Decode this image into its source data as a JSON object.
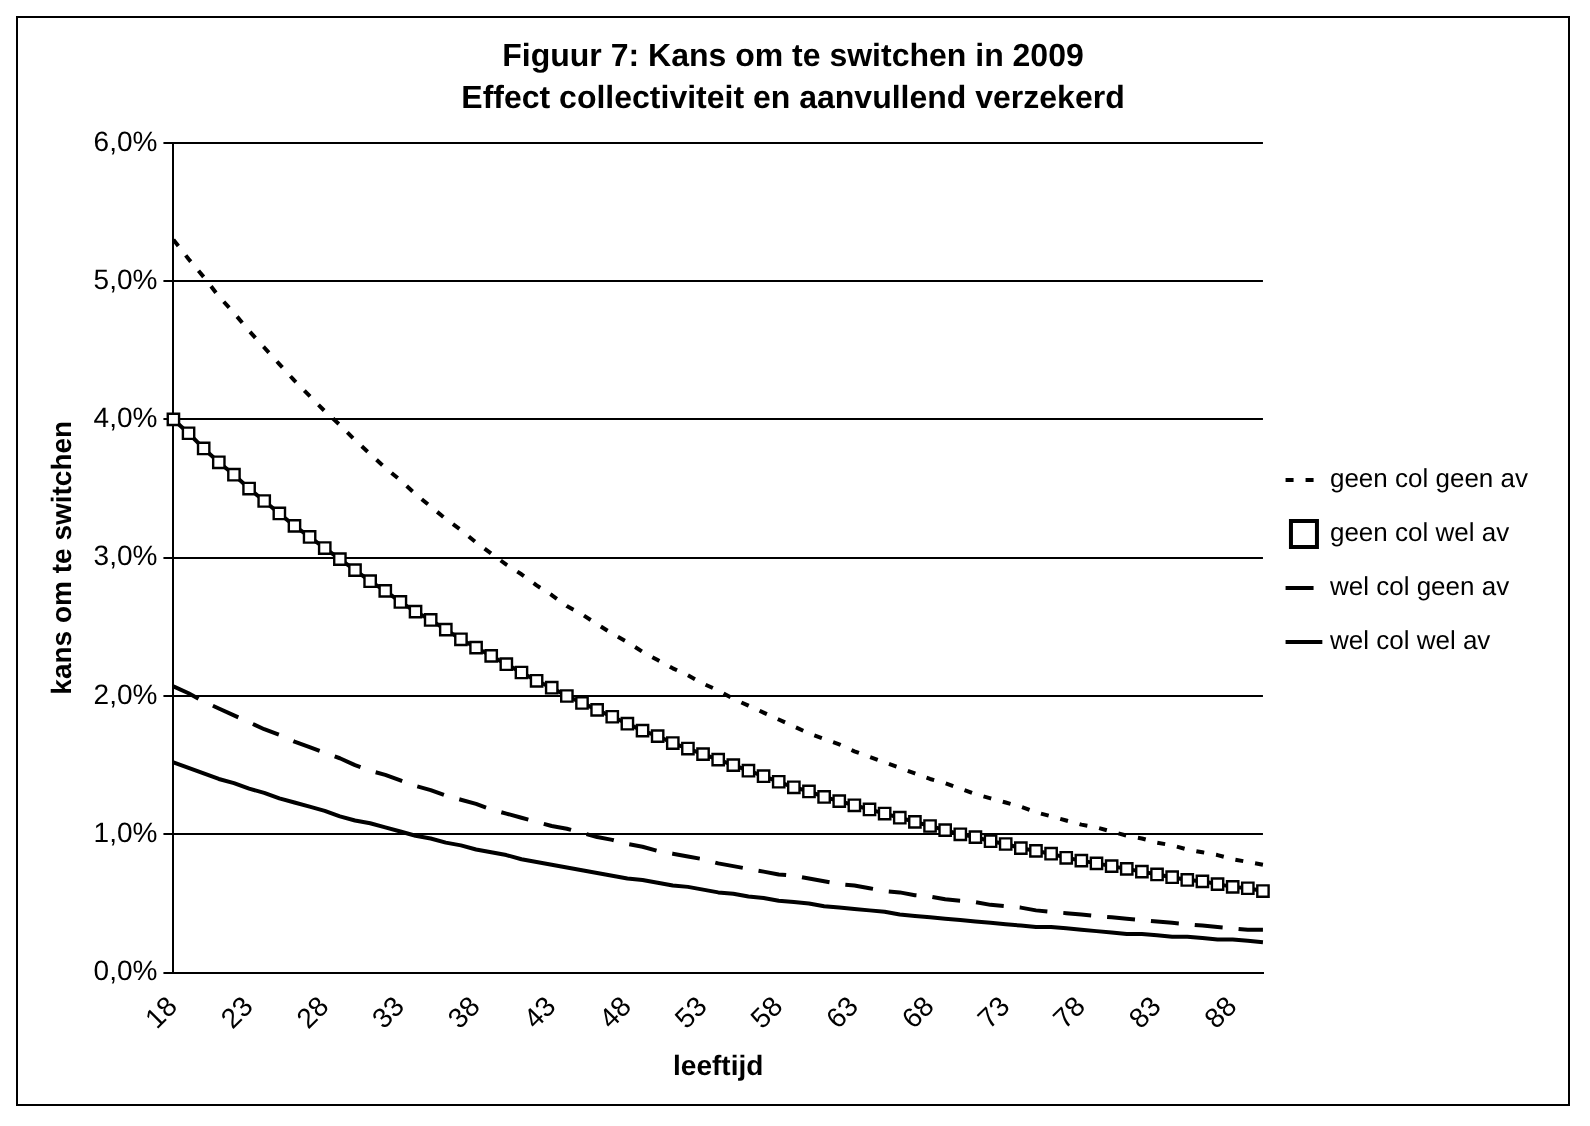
{
  "chart_data": {
    "type": "line",
    "title": "Figuur 7: Kans om te switchen in 2009",
    "subtitle": "Effect collectiviteit en aanvullend verzekerd",
    "xlabel": "leeftijd",
    "ylabel": "kans om te switchen",
    "categories": [
      "18",
      null,
      null,
      null,
      null,
      "23",
      null,
      null,
      null,
      null,
      "28",
      null,
      null,
      null,
      null,
      "33",
      null,
      null,
      null,
      null,
      "38",
      null,
      null,
      null,
      null,
      "43",
      null,
      null,
      null,
      null,
      "48",
      null,
      null,
      null,
      null,
      "53",
      null,
      null,
      null,
      null,
      "58",
      null,
      null,
      null,
      null,
      "63",
      null,
      null,
      null,
      null,
      "68",
      null,
      null,
      null,
      null,
      "73",
      null,
      null,
      null,
      null,
      "78",
      null,
      null,
      null,
      null,
      "83",
      null,
      null,
      null,
      null,
      "88",
      null,
      null
    ],
    "ylim": [
      0,
      6
    ],
    "yticks": [
      {
        "value": 0,
        "label": "0,0%"
      },
      {
        "value": 1,
        "label": "1,0%"
      },
      {
        "value": 2,
        "label": "2,0%"
      },
      {
        "value": 3,
        "label": "3,0%"
      },
      {
        "value": 4,
        "label": "4,0%"
      },
      {
        "value": 5,
        "label": "5,0%"
      },
      {
        "value": 6,
        "label": "6,0%"
      }
    ],
    "grid": "y",
    "legend": "right",
    "series": [
      {
        "name": "geen col geen av",
        "color": "#000000",
        "line_style": "dotted",
        "marker": "none",
        "values": [
          5.3,
          5.16,
          5.03,
          4.89,
          4.77,
          4.64,
          4.52,
          4.4,
          4.28,
          4.17,
          4.06,
          3.96,
          3.85,
          3.75,
          3.65,
          3.56,
          3.46,
          3.37,
          3.28,
          3.2,
          3.11,
          3.03,
          2.95,
          2.88,
          2.8,
          2.73,
          2.65,
          2.59,
          2.52,
          2.45,
          2.39,
          2.32,
          2.26,
          2.2,
          2.15,
          2.09,
          2.04,
          1.98,
          1.93,
          1.88,
          1.83,
          1.78,
          1.73,
          1.69,
          1.65,
          1.6,
          1.56,
          1.52,
          1.48,
          1.44,
          1.4,
          1.37,
          1.33,
          1.29,
          1.26,
          1.23,
          1.2,
          1.16,
          1.13,
          1.1,
          1.07,
          1.05,
          1.02,
          0.99,
          0.97,
          0.94,
          0.92,
          0.89,
          0.87,
          0.85,
          0.82,
          0.8,
          0.78
        ]
      },
      {
        "name": "geen col wel av",
        "color": "#000000",
        "line_style": "solid",
        "marker": "square",
        "values": [
          4.0,
          3.9,
          3.79,
          3.69,
          3.6,
          3.5,
          3.41,
          3.32,
          3.23,
          3.15,
          3.07,
          2.99,
          2.91,
          2.83,
          2.76,
          2.68,
          2.61,
          2.55,
          2.48,
          2.41,
          2.35,
          2.29,
          2.23,
          2.17,
          2.11,
          2.06,
          2.0,
          1.95,
          1.9,
          1.85,
          1.8,
          1.75,
          1.71,
          1.66,
          1.62,
          1.58,
          1.54,
          1.5,
          1.46,
          1.42,
          1.38,
          1.34,
          1.31,
          1.27,
          1.24,
          1.21,
          1.18,
          1.15,
          1.12,
          1.09,
          1.06,
          1.03,
          1.0,
          0.98,
          0.95,
          0.93,
          0.9,
          0.88,
          0.86,
          0.83,
          0.81,
          0.79,
          0.77,
          0.75,
          0.73,
          0.71,
          0.69,
          0.67,
          0.66,
          0.64,
          0.62,
          0.61,
          0.59
        ]
      },
      {
        "name": "wel col geen av",
        "color": "#000000",
        "line_style": "dashed",
        "marker": "none",
        "values": [
          2.07,
          2.02,
          1.96,
          1.91,
          1.86,
          1.81,
          1.76,
          1.72,
          1.67,
          1.63,
          1.59,
          1.55,
          1.5,
          1.46,
          1.43,
          1.39,
          1.35,
          1.32,
          1.28,
          1.25,
          1.22,
          1.18,
          1.15,
          1.12,
          1.09,
          1.06,
          1.04,
          1.01,
          0.98,
          0.96,
          0.93,
          0.91,
          0.88,
          0.86,
          0.84,
          0.82,
          0.79,
          0.77,
          0.75,
          0.73,
          0.71,
          0.7,
          0.68,
          0.66,
          0.64,
          0.63,
          0.61,
          0.59,
          0.58,
          0.56,
          0.55,
          0.53,
          0.52,
          0.51,
          0.49,
          0.48,
          0.47,
          0.45,
          0.44,
          0.43,
          0.42,
          0.41,
          0.4,
          0.39,
          0.38,
          0.37,
          0.36,
          0.35,
          0.34,
          0.33,
          0.32,
          0.31,
          0.31
        ]
      },
      {
        "name": "wel col wel av",
        "color": "#000000",
        "line_style": "solid",
        "marker": "none",
        "values": [
          1.52,
          1.48,
          1.44,
          1.4,
          1.37,
          1.33,
          1.3,
          1.26,
          1.23,
          1.2,
          1.17,
          1.13,
          1.1,
          1.08,
          1.05,
          1.02,
          0.99,
          0.97,
          0.94,
          0.92,
          0.89,
          0.87,
          0.85,
          0.82,
          0.8,
          0.78,
          0.76,
          0.74,
          0.72,
          0.7,
          0.68,
          0.67,
          0.65,
          0.63,
          0.62,
          0.6,
          0.58,
          0.57,
          0.55,
          0.54,
          0.52,
          0.51,
          0.5,
          0.48,
          0.47,
          0.46,
          0.45,
          0.44,
          0.42,
          0.41,
          0.4,
          0.39,
          0.38,
          0.37,
          0.36,
          0.35,
          0.34,
          0.33,
          0.33,
          0.32,
          0.31,
          0.3,
          0.29,
          0.28,
          0.28,
          0.27,
          0.26,
          0.26,
          0.25,
          0.24,
          0.24,
          0.23,
          0.22
        ]
      }
    ]
  }
}
